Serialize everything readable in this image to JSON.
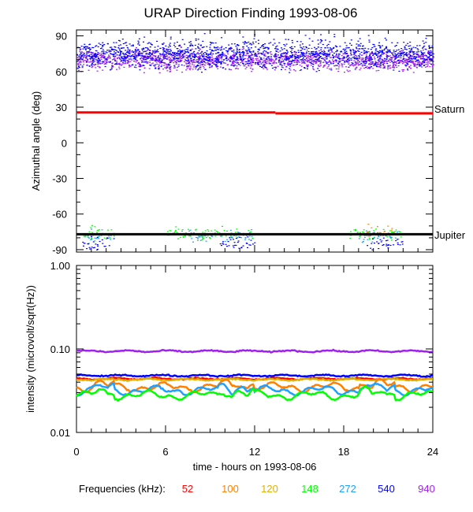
{
  "title": "URAP Direction Finding  1993-08-06",
  "chart_data": [
    {
      "type": "scatter",
      "ylabel": "Azimuthal angle (deg)",
      "ylim": [
        -92,
        95
      ],
      "xlim": [
        0,
        24
      ],
      "yticks": [
        "90",
        "60",
        "30",
        "0",
        "-30",
        "-60",
        "-90"
      ],
      "ytick_values": [
        90,
        60,
        30,
        0,
        -30,
        -60,
        -90
      ],
      "reference_lines": [
        {
          "name": "Saturn",
          "color": "#ff0000",
          "segments": [
            [
              0,
              13.4,
              25.5
            ],
            [
              13.4,
              24,
              24.8
            ]
          ]
        },
        {
          "name": "Jupiter",
          "color": "#000000",
          "segments": [
            [
              0,
              24,
              -77
            ]
          ]
        }
      ],
      "series": [
        {
          "freq": "940",
          "color": "#a020f0",
          "cluster": {
            "center": 70,
            "spread": 7,
            "x_ranges": [
              [
                0,
                24
              ]
            ]
          }
        },
        {
          "freq": "540",
          "color": "#0000ff",
          "cluster": {
            "center": 75,
            "spread": 10,
            "x_ranges": [
              [
                0,
                24
              ]
            ]
          }
        },
        {
          "freq": "148",
          "color": "#00ff00",
          "cluster": {
            "center": -76,
            "spread": 5,
            "x_ranges": [
              [
                0.3,
                2.5
              ],
              [
                6,
                12
              ],
              [
                18.3,
                22
              ]
            ]
          }
        },
        {
          "freq": "272",
          "color": "#1ea0ff",
          "cluster": {
            "center": -78,
            "spread": 4,
            "x_ranges": [
              [
                0.5,
                2.4
              ],
              [
                7.5,
                11.8
              ],
              [
                19,
                21.8
              ]
            ]
          }
        },
        {
          "freq": "100",
          "color": "#ff8000",
          "cluster": {
            "center": -75,
            "spread": 4,
            "x_ranges": [
              [
                19.5,
                21.5
              ]
            ]
          }
        },
        {
          "freq": "540",
          "color": "#0000ff",
          "cluster": {
            "center": -84,
            "spread": 5,
            "x_ranges": [
              [
                0.3,
                2.5
              ],
              [
                9.5,
                12
              ],
              [
                19.5,
                22
              ]
            ]
          }
        }
      ]
    },
    {
      "type": "line",
      "ylabel": "intensity (microvolt/sqrt(Hz))",
      "xlabel": "time - hours on 1993-08-06",
      "xlim": [
        0,
        24
      ],
      "yscale": "log",
      "ylim": [
        0.01,
        1.0
      ],
      "yticks": [
        "1.00",
        "0.10",
        "0.01"
      ],
      "ytick_values": [
        1.0,
        0.1,
        0.01
      ],
      "xticks": [
        "0",
        "6",
        "12",
        "18",
        "24"
      ],
      "xtick_values": [
        0,
        6,
        12,
        18,
        24
      ],
      "series": [
        {
          "name": "940",
          "color": "#a020f0",
          "level": 0.094
        },
        {
          "name": "540",
          "color": "#0000ff",
          "level": 0.048
        },
        {
          "name": "52",
          "color": "#ff0000",
          "level": 0.044
        },
        {
          "name": "120",
          "color": "#e0b000",
          "level": 0.043
        },
        {
          "name": "100",
          "color": "#ff8000",
          "level": 0.035
        },
        {
          "name": "272",
          "color": "#1ea0ff",
          "level": 0.032
        },
        {
          "name": "148",
          "color": "#00ff00",
          "level": 0.028
        }
      ]
    }
  ],
  "legend": {
    "label": "Frequencies (kHz):",
    "items": [
      {
        "text": "52",
        "color": "#ff0000"
      },
      {
        "text": "100",
        "color": "#ff8000"
      },
      {
        "text": "120",
        "color": "#e0b000"
      },
      {
        "text": "148",
        "color": "#00ff00"
      },
      {
        "text": "272",
        "color": "#1ea0ff"
      },
      {
        "text": "540",
        "color": "#0000ff"
      },
      {
        "text": "940",
        "color": "#a020f0"
      }
    ]
  }
}
